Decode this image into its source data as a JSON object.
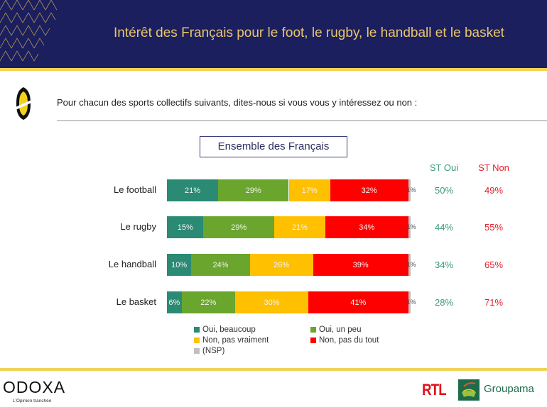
{
  "header": {
    "title": "Intérêt des Français pour le foot, le rugby, le handball et le basket"
  },
  "question": "Pour chacun des sports collectifs suivants, dites-nous si vous vous y intéressez ou non :",
  "subset_label": "Ensemble des Français",
  "columns": {
    "st_oui": "ST Oui",
    "st_non": "ST Non"
  },
  "colors": {
    "oui_beaucoup": "#2a8a74",
    "oui_un_peu": "#6aa52e",
    "non_pas_vraiment": "#ffc000",
    "non_pas_du_tout": "#ff0000",
    "nsp": "#c0c0c0",
    "st_oui": "#3a9a7e",
    "st_non": "#e8202a",
    "header_bg": "#1b1f5e",
    "accent": "#f2d25a"
  },
  "chart_data": {
    "type": "bar",
    "orientation": "horizontal",
    "stacked": true,
    "title": "Ensemble des Français",
    "categories": [
      "Le football",
      "Le rugby",
      "Le handball",
      "Le basket"
    ],
    "series": [
      {
        "name": "Oui, beaucoup",
        "key": "oui_beaucoup",
        "values": [
          21,
          15,
          10,
          6
        ],
        "labels": [
          "21%",
          "15%",
          "10%",
          "6%"
        ]
      },
      {
        "name": "Oui, un peu",
        "key": "oui_un_peu",
        "values": [
          29,
          29,
          24,
          22
        ],
        "labels": [
          "29%",
          "29%",
          "24%",
          "22%"
        ]
      },
      {
        "name": "Non, pas vraiment",
        "key": "non_pas_vraiment",
        "values": [
          17,
          21,
          26,
          30
        ],
        "labels": [
          "17%",
          "21%",
          "26%",
          "30%"
        ]
      },
      {
        "name": "Non, pas du tout",
        "key": "non_pas_du_tout",
        "values": [
          32,
          34,
          39,
          41
        ],
        "labels": [
          "32%",
          "34%",
          "39%",
          "41%"
        ]
      },
      {
        "name": "(NSP)",
        "key": "nsp",
        "values": [
          1,
          1,
          1,
          1
        ],
        "labels": [
          "1%",
          "1%",
          "1%",
          "1%"
        ]
      }
    ],
    "st_oui": [
      "50%",
      "44%",
      "34%",
      "28%"
    ],
    "st_non": [
      "49%",
      "55%",
      "65%",
      "71%"
    ],
    "xlim": [
      0,
      100
    ],
    "legend_position": "bottom"
  },
  "legend": [
    {
      "label": "Oui, beaucoup",
      "key": "oui_beaucoup"
    },
    {
      "label": "Oui, un peu",
      "key": "oui_un_peu"
    },
    {
      "label": "Non, pas vraiment",
      "key": "non_pas_vraiment"
    },
    {
      "label": "Non, pas du tout",
      "key": "non_pas_du_tout"
    },
    {
      "label": "(NSP)",
      "key": "nsp"
    }
  ],
  "footer": {
    "odoxa_logo": "ODOXA",
    "odoxa_tagline": "L'Opinion tranchée",
    "rtl_logo": "RTL",
    "groupama_logo": "Groupama"
  }
}
